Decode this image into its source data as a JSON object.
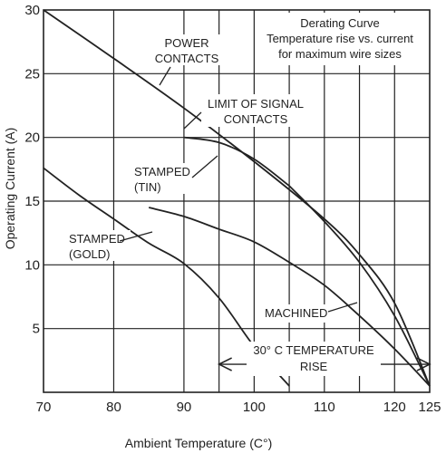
{
  "chart_data": {
    "type": "line",
    "title": "Derating Curve",
    "subtitle_lines": [
      "Temperature rise vs. current",
      "for maximum wire sizes"
    ],
    "xlabel": "Ambient Temperature (C°)",
    "ylabel": "Operating Current (A)",
    "xlim": [
      70,
      125
    ],
    "ylim": [
      0,
      30
    ],
    "x_ticks": [
      70,
      80,
      90,
      100,
      110,
      120,
      125
    ],
    "y_ticks": [
      5,
      10,
      15,
      20,
      25,
      30
    ],
    "grid": true,
    "series": [
      {
        "name": "POWER CONTACTS",
        "x": [
          70,
          80,
          90,
          100,
          110,
          115,
          120,
          125
        ],
        "y": [
          30,
          26.2,
          22.3,
          18.1,
          13.6,
          10.8,
          7.0,
          0.5
        ]
      },
      {
        "name": "LIMIT OF SIGNAL CONTACTS",
        "x": [
          90,
          95,
          100,
          105
        ],
        "y": [
          20,
          19.6,
          18.3,
          16.2
        ]
      },
      {
        "name": "STAMPED (TIN)",
        "x": [
          105,
          110,
          115,
          120,
          125
        ],
        "y": [
          16.2,
          13.4,
          10.2,
          6.0,
          0.5
        ]
      },
      {
        "name": "STAMPED (GOLD)",
        "x": [
          70,
          75,
          80,
          85,
          90,
          95,
          100,
          105
        ],
        "y": [
          17.6,
          15.5,
          13.6,
          11.7,
          10.1,
          7.4,
          3.6,
          0.5
        ]
      },
      {
        "name": "MACHINED",
        "x": [
          85,
          90,
          95,
          100,
          105,
          110,
          115,
          120,
          125
        ],
        "y": [
          14.5,
          13.8,
          12.8,
          11.8,
          10.2,
          8.4,
          6.0,
          3.4,
          0.5
        ]
      }
    ],
    "annotations": [
      {
        "key": "power",
        "lines": [
          "POWER",
          "CONTACTS"
        ]
      },
      {
        "key": "signal",
        "lines": [
          "LIMIT OF SIGNAL",
          "CONTACTS"
        ]
      },
      {
        "key": "tin",
        "lines": [
          "STAMPED",
          "(TIN)"
        ]
      },
      {
        "key": "gold",
        "lines": [
          "STAMPED",
          "(GOLD)"
        ]
      },
      {
        "key": "machined",
        "lines": [
          "MACHINED"
        ]
      },
      {
        "key": "rise",
        "lines": [
          "30° C TEMPERATURE",
          "RISE"
        ],
        "x_range": [
          95,
          125
        ]
      }
    ],
    "legend_position": "top-right"
  }
}
